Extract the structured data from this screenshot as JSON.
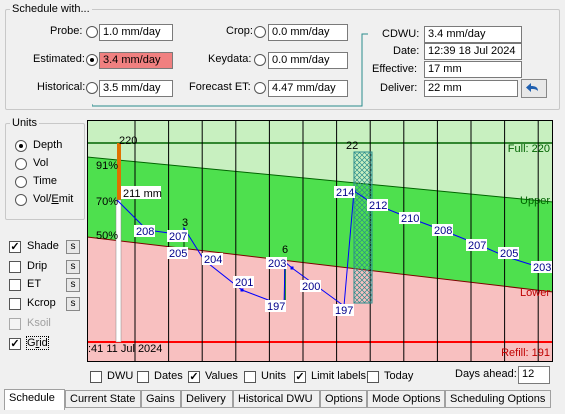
{
  "schedule": {
    "legend": "Schedule with...",
    "probe": {
      "label": "Probe:",
      "value": "1.0 mm/day"
    },
    "estimated": {
      "label": "Estimated:",
      "value": "3.4 mm/day"
    },
    "historical": {
      "label": "Historical:",
      "value": "3.5 mm/day"
    },
    "crop": {
      "label": "Crop:",
      "value": "0.0 mm/day"
    },
    "keydata": {
      "label": "Keydata:",
      "value": "0.0 mm/day"
    },
    "forecast": {
      "label": "Forecast ET:",
      "value": "4.47 mm/day"
    },
    "cdwu": {
      "label": "CDWU:",
      "value": "3.4 mm/day"
    },
    "date": {
      "label": "Date:",
      "value": "12:39  18 Jul 2024"
    },
    "effective": {
      "label": "Effective:",
      "value": "17 mm"
    },
    "deliver": {
      "label": "Deliver:",
      "value": "22 mm"
    }
  },
  "units": {
    "legend": "Units",
    "options": [
      "Depth",
      "Vol",
      "Time",
      "Vol/Emit"
    ],
    "selected": "Depth"
  },
  "layers": [
    {
      "label": "Shade",
      "checked": true,
      "enabled": true,
      "has_s": true
    },
    {
      "label": "Drip",
      "checked": false,
      "enabled": true,
      "has_s": true
    },
    {
      "label": "ET",
      "checked": false,
      "enabled": true,
      "has_s": true
    },
    {
      "label": "Kcrop",
      "checked": false,
      "enabled": true,
      "has_s": true
    },
    {
      "label": "Ksoil",
      "checked": false,
      "enabled": false,
      "has_s": false
    },
    {
      "label": "Grid",
      "checked": true,
      "enabled": true,
      "has_s": false
    }
  ],
  "s_label": "s",
  "bottom_options": [
    {
      "label": "DWU",
      "checked": false
    },
    {
      "label": "Dates",
      "checked": false
    },
    {
      "label": "Values",
      "checked": true
    },
    {
      "label": "Units",
      "checked": false
    },
    {
      "label": "Limit labels",
      "checked": true
    },
    {
      "label": "Today",
      "checked": false
    }
  ],
  "days_ahead": {
    "label": "Days ahead:",
    "value": "12"
  },
  "tabs": [
    "Schedule",
    "Current State",
    "Gains",
    "Delivery",
    "Historical DWU",
    "Options",
    "Mode Options",
    "Scheduling Options"
  ],
  "active_tab": "Schedule",
  "chart": {
    "full_label": "Full: 220",
    "upper_label": "Upper",
    "lower_label": "Lower",
    "refill_label": "Refill: 191",
    "date_label": ":41  11 Jul 2024",
    "pct_labels": [
      "91%",
      "70%",
      "50%"
    ],
    "irrigation_labels": [
      "220",
      "3",
      "6",
      "22"
    ],
    "first_value": "211 mm",
    "points": [
      "208",
      "207",
      "205",
      "204",
      "201",
      "197",
      "203",
      "200",
      "197",
      "214",
      "212",
      "210",
      "208",
      "207",
      "205",
      "203"
    ],
    "colors": {
      "full_zone": "#c8f0c0",
      "upper_zone": "#4ee04e",
      "lower_zone": "#f8c0c0",
      "full_line": "#006400",
      "refill_line": "#ff0000",
      "trace": "#0000ff",
      "label_text": "#00008b",
      "bar_orange": "#e07000"
    }
  }
}
